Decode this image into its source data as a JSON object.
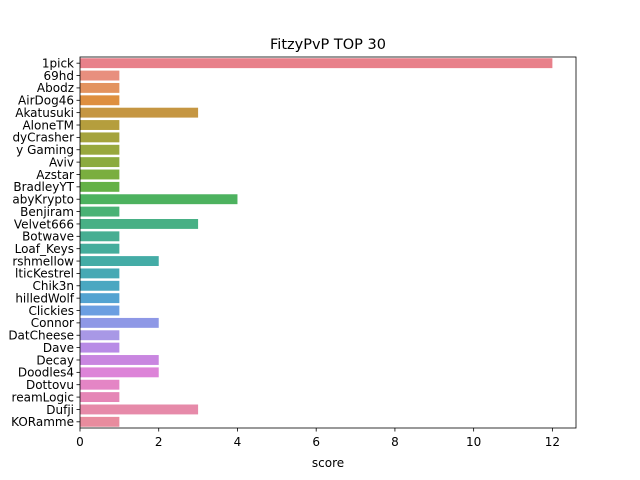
{
  "chart_data": {
    "type": "bar",
    "orientation": "horizontal",
    "title": "FitzyPvP TOP 30",
    "xlabel": "score",
    "ylabel": "",
    "xlim": [
      0,
      12.6
    ],
    "xticks": [
      "0",
      "2",
      "4",
      "6",
      "8",
      "10",
      "12"
    ],
    "grid": false,
    "categories": [
      "1pick",
      "69hd",
      "Abodz",
      "AirDog46",
      "Akatusuki",
      "AloneTM",
      "dyCrasher",
      "y Gaming",
      "Aviv",
      "Azstar",
      "BradleyYT",
      "abyKrypto",
      "Benjiram",
      "Velvet666",
      "Botwave",
      "Loaf_Keys",
      "rshmellow",
      "lticKestrel",
      "Chik3n",
      "hilledWolf",
      "Clickies",
      "Connor",
      "DatCheese",
      "Dave",
      "Decay",
      "Doodles4",
      "Dottovu",
      "reamLogic",
      "Dufji",
      "KORamme"
    ],
    "values": [
      12,
      1,
      1,
      1,
      3,
      1,
      1,
      1,
      1,
      1,
      1,
      4,
      1,
      3,
      1,
      1,
      2,
      1,
      1,
      1,
      1,
      2,
      1,
      1,
      2,
      2,
      1,
      1,
      3,
      1
    ],
    "colors": [
      "#e8808a",
      "#e88f7e",
      "#e3935f",
      "#de8f3f",
      "#c59642",
      "#b59e3d",
      "#a5a33c",
      "#98a83d",
      "#8bab3e",
      "#7aae3f",
      "#64b146",
      "#4db25f",
      "#4ab275",
      "#48b085",
      "#47ae92",
      "#45ad9c",
      "#44aca6",
      "#46a9b4",
      "#4aa7c1",
      "#53a3d1",
      "#6b9ee1",
      "#8e98e6",
      "#a898e6",
      "#b88be6",
      "#c986e0",
      "#dd84d8",
      "#e485c5",
      "#e586b6",
      "#e68aa9",
      "#e88c9e"
    ]
  }
}
